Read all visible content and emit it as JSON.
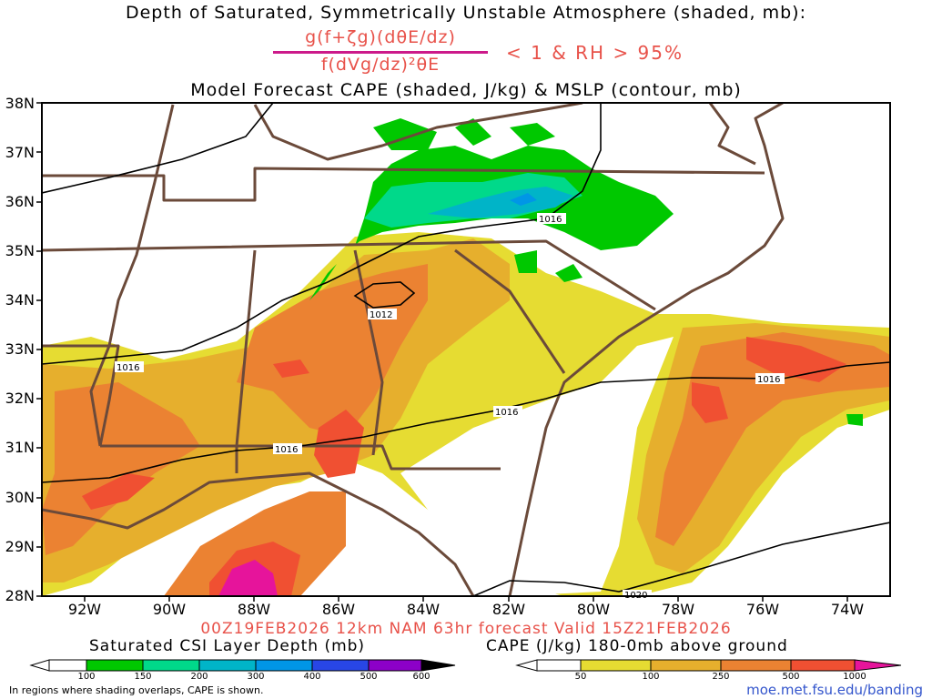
{
  "titles": {
    "line1": "Depth of Saturated, Symmetrically Unstable Atmosphere (shaded, mb):",
    "numerator": "g(f+ζg)(dθE/dz)",
    "denominator": "f(dVg/dz)²θE",
    "condition": "< 1 & RH > 95%",
    "line3": "Model Forecast CAPE (shaded, J/kg) & MSLP (contour, mb)"
  },
  "map": {
    "lat_labels": [
      "38N",
      "37N",
      "36N",
      "35N",
      "34N",
      "33N",
      "32N",
      "31N",
      "30N",
      "29N",
      "28N"
    ],
    "lon_labels": [
      "92W",
      "90W",
      "88W",
      "86W",
      "84W",
      "82W",
      "80W",
      "78W",
      "76W",
      "74W"
    ],
    "isobar_labels": [
      "1016",
      "1012",
      "1016",
      "1016",
      "1016",
      "1016",
      "1020"
    ],
    "colors": {
      "state_borders": "#6b4a3a",
      "isobars": "#000000",
      "frame": "#000000"
    }
  },
  "footer": {
    "valid_line": "00Z19FEB2026 12km NAM 63hr forecast Valid 15Z21FEB2026",
    "csi_title": "Saturated CSI Layer Depth (mb)",
    "cape_title": "CAPE (J/kg) 180-0mb above ground",
    "csi_ticks": [
      "100",
      "150",
      "200",
      "300",
      "400",
      "500",
      "600"
    ],
    "cape_ticks": [
      "50",
      "100",
      "250",
      "500",
      "1000"
    ],
    "note": "In regions where shading overlaps, CAPE is shown.",
    "url": "moe.met.fsu.edu/banding"
  },
  "colorbars": {
    "csi_colors": [
      "#ffffff",
      "#00c800",
      "#00d98a",
      "#00b4c8",
      "#0096e6",
      "#2846e6",
      "#5014d2",
      "#8c00c8"
    ],
    "cape_colors": [
      "#ffffff",
      "#e6dc32",
      "#e6af2d",
      "#eb8232",
      "#f05032",
      "#f52850",
      "#e6149b"
    ]
  },
  "shading_colors": {
    "cape_50": "#e6dc32",
    "cape_100": "#e6af2d",
    "cape_250": "#eb8232",
    "cape_500": "#f05032",
    "cape_1000": "#e6149b",
    "csi_100": "#00c800",
    "csi_150": "#00d98a",
    "csi_200": "#00b4c8",
    "csi_300": "#0096e6"
  }
}
